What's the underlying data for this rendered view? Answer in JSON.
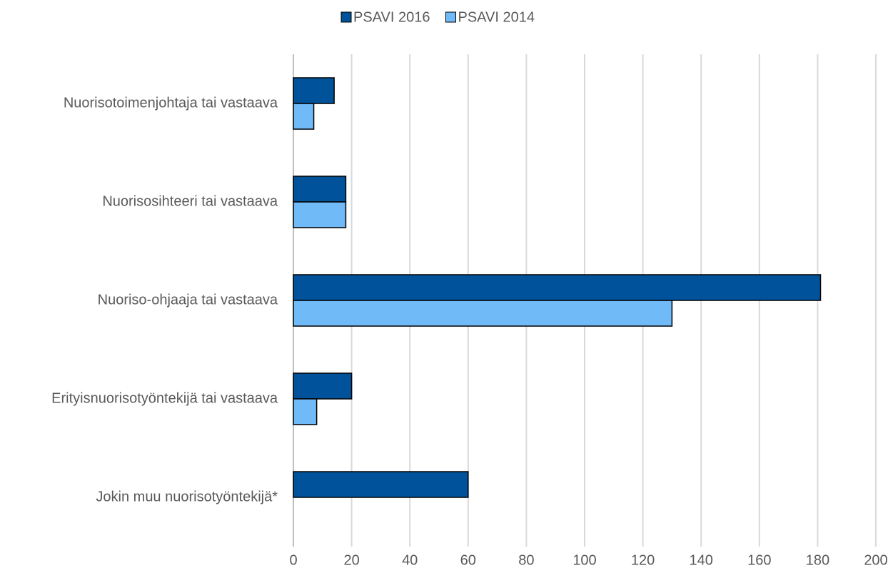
{
  "chart_data": {
    "type": "bar",
    "orientation": "horizontal",
    "categories": [
      "Nuorisotoimenjohtaja tai vastaava",
      "Nuorisosihteeri tai vastaava",
      "Nuoriso-ohjaaja tai vastaava",
      "Erityisnuorisotyöntekijä tai vastaava",
      "Jokin muu nuorisotyöntekijä*"
    ],
    "series": [
      {
        "name": "PSAVI 2016",
        "color": "#00539b",
        "values": [
          14,
          18,
          181,
          20,
          60
        ]
      },
      {
        "name": "PSAVI 2014",
        "color": "#70baf8",
        "values": [
          7,
          18,
          130,
          8,
          null
        ]
      }
    ],
    "xlim": [
      0,
      200
    ],
    "xticks": [
      0,
      20,
      40,
      60,
      80,
      100,
      120,
      140,
      160,
      180,
      200
    ],
    "grid": true,
    "legend": "top"
  }
}
